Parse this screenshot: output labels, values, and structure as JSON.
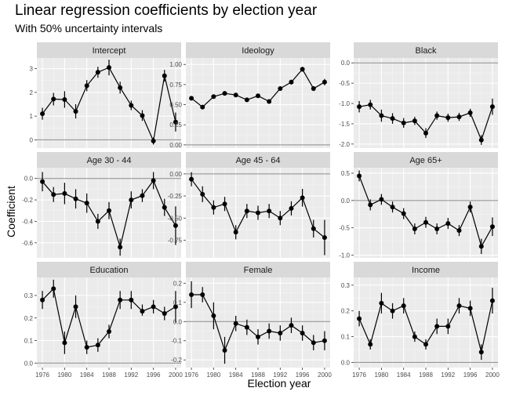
{
  "chart_data": {
    "type": "scatter",
    "title": "Linear regression coefficients by election year",
    "subtitle": "With 50% uncertainty intervals",
    "xlabel": "Election year",
    "ylabel": "Coefficient",
    "x": [
      1976,
      1978,
      1980,
      1982,
      1984,
      1986,
      1988,
      1990,
      1992,
      1994,
      1996,
      1998,
      2000
    ],
    "x_ticks": [
      1976,
      1980,
      1984,
      1988,
      1992,
      1996,
      2000
    ],
    "x_range": [
      1975,
      2001
    ],
    "grid": true,
    "reference_line": 0,
    "panels": [
      {
        "name": "Intercept",
        "ylim": [
          -0.35,
          3.45
        ],
        "yticks": [
          0,
          1,
          2,
          3
        ],
        "ytick_labels": [
          "0",
          "1",
          "2",
          "3"
        ],
        "values": [
          1.1,
          1.72,
          1.7,
          1.2,
          2.28,
          2.85,
          3.05,
          2.2,
          1.45,
          1.02,
          -0.05,
          2.7,
          0.75
        ],
        "lower": [
          0.85,
          1.45,
          1.35,
          0.9,
          2.05,
          2.62,
          2.72,
          1.95,
          1.25,
          0.8,
          -0.2,
          2.45,
          0.35
        ],
        "upper": [
          1.35,
          1.98,
          2.05,
          1.5,
          2.52,
          3.08,
          3.38,
          2.45,
          1.65,
          1.25,
          0.1,
          2.95,
          1.15
        ]
      },
      {
        "name": "Ideology",
        "ylim": [
          -0.04,
          1.08
        ],
        "yticks": [
          0,
          0.25,
          0.5,
          0.75,
          1.0
        ],
        "ytick_labels": [
          "0.00",
          "0.25",
          "0.50",
          "0.75",
          "1.00"
        ],
        "values": [
          0.58,
          0.47,
          0.6,
          0.64,
          0.62,
          0.56,
          0.61,
          0.54,
          0.7,
          0.78,
          0.94,
          0.7,
          0.78
        ],
        "lower": [
          0.56,
          0.45,
          0.58,
          0.62,
          0.6,
          0.54,
          0.59,
          0.52,
          0.68,
          0.75,
          0.91,
          0.67,
          0.74
        ],
        "upper": [
          0.6,
          0.49,
          0.62,
          0.66,
          0.64,
          0.58,
          0.63,
          0.56,
          0.72,
          0.81,
          0.97,
          0.73,
          0.82
        ]
      },
      {
        "name": "Black",
        "ylim": [
          -2.1,
          0.12
        ],
        "yticks": [
          0,
          -0.5,
          -1.0,
          -1.5,
          -2.0
        ],
        "ytick_labels": [
          "0.0",
          "-0.5",
          "-1.0",
          "-1.5",
          "-2.0"
        ],
        "values": [
          -1.08,
          -1.03,
          -1.3,
          -1.37,
          -1.48,
          -1.43,
          -1.73,
          -1.3,
          -1.35,
          -1.33,
          -1.23,
          -1.9,
          -1.08
        ],
        "lower": [
          -1.22,
          -1.15,
          -1.45,
          -1.5,
          -1.6,
          -1.53,
          -1.85,
          -1.4,
          -1.45,
          -1.43,
          -1.33,
          -2.02,
          -1.28
        ],
        "upper": [
          -0.94,
          -0.91,
          -1.15,
          -1.24,
          -1.36,
          -1.33,
          -1.61,
          -1.2,
          -1.25,
          -1.23,
          -1.13,
          -1.78,
          -0.88
        ]
      },
      {
        "name": "Age 30 - 44",
        "ylim": [
          -0.74,
          0.1
        ],
        "yticks": [
          0,
          -0.2,
          -0.4,
          -0.6
        ],
        "ytick_labels": [
          "0.0",
          "-0.2",
          "-0.4",
          "-0.6"
        ],
        "values": [
          -0.03,
          -0.15,
          -0.14,
          -0.19,
          -0.23,
          -0.4,
          -0.3,
          -0.64,
          -0.2,
          -0.16,
          -0.02,
          -0.27,
          -0.44
        ],
        "lower": [
          -0.12,
          -0.22,
          -0.24,
          -0.28,
          -0.32,
          -0.47,
          -0.38,
          -0.72,
          -0.28,
          -0.22,
          -0.1,
          -0.35,
          -0.62
        ],
        "upper": [
          0.06,
          -0.08,
          -0.04,
          -0.1,
          -0.14,
          -0.33,
          -0.22,
          -0.56,
          -0.12,
          -0.1,
          0.06,
          -0.19,
          -0.26
        ]
      },
      {
        "name": "Age 45 - 64",
        "ylim": [
          -0.95,
          0.07
        ],
        "yticks": [
          0,
          -0.25,
          -0.5,
          -0.75
        ],
        "ytick_labels": [
          "0.00",
          "-0.25",
          "-0.50",
          "-0.75"
        ],
        "values": [
          -0.06,
          -0.23,
          -0.38,
          -0.34,
          -0.66,
          -0.42,
          -0.44,
          -0.42,
          -0.5,
          -0.39,
          -0.27,
          -0.62,
          -0.72
        ],
        "lower": [
          -0.14,
          -0.32,
          -0.46,
          -0.42,
          -0.74,
          -0.5,
          -0.52,
          -0.5,
          -0.58,
          -0.47,
          -0.37,
          -0.72,
          -0.92
        ],
        "upper": [
          0.02,
          -0.14,
          -0.3,
          -0.26,
          -0.58,
          -0.34,
          -0.36,
          -0.34,
          -0.42,
          -0.31,
          -0.17,
          -0.52,
          -0.52
        ]
      },
      {
        "name": "Age 65+",
        "ylim": [
          -1.05,
          0.6
        ],
        "yticks": [
          0.5,
          0,
          -0.5,
          -1.0
        ],
        "ytick_labels": [
          "0.5",
          "0.0",
          "-0.5",
          "-1.0"
        ],
        "values": [
          0.45,
          -0.08,
          0.02,
          -0.12,
          -0.24,
          -0.52,
          -0.4,
          -0.52,
          -0.42,
          -0.55,
          -0.12,
          -0.84,
          -0.48
        ],
        "lower": [
          0.35,
          -0.18,
          -0.08,
          -0.22,
          -0.34,
          -0.62,
          -0.5,
          -0.62,
          -0.52,
          -0.65,
          -0.22,
          -0.98,
          -0.65
        ],
        "upper": [
          0.55,
          0.02,
          0.12,
          -0.02,
          -0.14,
          -0.42,
          -0.3,
          -0.42,
          -0.32,
          -0.45,
          -0.02,
          -0.7,
          -0.31
        ]
      },
      {
        "name": "Education",
        "ylim": [
          -0.02,
          0.38
        ],
        "yticks": [
          0,
          0.1,
          0.2,
          0.3
        ],
        "ytick_labels": [
          "0.0",
          "0.1",
          "0.2",
          "0.3"
        ],
        "values": [
          0.28,
          0.33,
          0.09,
          0.25,
          0.07,
          0.08,
          0.14,
          0.28,
          0.28,
          0.23,
          0.25,
          0.22,
          0.25
        ],
        "lower": [
          0.24,
          0.29,
          0.04,
          0.2,
          0.04,
          0.05,
          0.11,
          0.24,
          0.24,
          0.21,
          0.22,
          0.19,
          0.18
        ],
        "upper": [
          0.32,
          0.37,
          0.14,
          0.3,
          0.1,
          0.11,
          0.17,
          0.32,
          0.32,
          0.26,
          0.28,
          0.25,
          0.32
        ]
      },
      {
        "name": "Female",
        "ylim": [
          -0.24,
          0.23
        ],
        "yticks": [
          0.2,
          0.1,
          0,
          -0.1,
          -0.2
        ],
        "ytick_labels": [
          "0.2",
          "0.1",
          "0.0",
          "-0.1",
          "-0.2"
        ],
        "values": [
          0.14,
          0.14,
          0.03,
          -0.15,
          -0.01,
          -0.03,
          -0.08,
          -0.05,
          -0.06,
          -0.02,
          -0.06,
          -0.11,
          -0.1
        ],
        "lower": [
          0.07,
          0.1,
          -0.04,
          -0.22,
          -0.05,
          -0.07,
          -0.12,
          -0.09,
          -0.1,
          -0.06,
          -0.1,
          -0.15,
          -0.15
        ],
        "upper": [
          0.21,
          0.18,
          0.1,
          -0.08,
          0.03,
          0.01,
          -0.04,
          -0.01,
          -0.02,
          0.02,
          -0.02,
          -0.07,
          -0.05
        ]
      },
      {
        "name": "Income",
        "ylim": [
          -0.02,
          0.33
        ],
        "yticks": [
          0,
          0.1,
          0.2,
          0.3
        ],
        "ytick_labels": [
          "0.0",
          "0.1",
          "0.2",
          "0.3"
        ],
        "values": [
          0.17,
          0.07,
          0.23,
          0.2,
          0.22,
          0.1,
          0.07,
          0.14,
          0.14,
          0.22,
          0.21,
          0.04,
          0.24
        ],
        "lower": [
          0.14,
          0.05,
          0.19,
          0.17,
          0.19,
          0.08,
          0.05,
          0.11,
          0.11,
          0.19,
          0.18,
          0.01,
          0.19
        ],
        "upper": [
          0.2,
          0.09,
          0.27,
          0.23,
          0.25,
          0.12,
          0.09,
          0.17,
          0.17,
          0.25,
          0.24,
          0.07,
          0.29
        ]
      }
    ]
  }
}
